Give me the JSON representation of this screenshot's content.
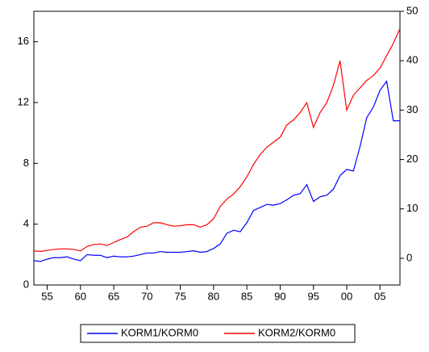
{
  "chart_data": {
    "type": "line",
    "x": [
      1953,
      1954,
      1955,
      1956,
      1957,
      1958,
      1959,
      1960,
      1961,
      1962,
      1963,
      1964,
      1965,
      1966,
      1967,
      1968,
      1969,
      1970,
      1971,
      1972,
      1973,
      1974,
      1975,
      1976,
      1977,
      1978,
      1979,
      1980,
      1981,
      1982,
      1983,
      1984,
      1985,
      1986,
      1987,
      1988,
      1989,
      1990,
      1991,
      1992,
      1993,
      1994,
      1995,
      1996,
      1997,
      1998,
      1999,
      2000,
      2001,
      2002,
      2003,
      2004,
      2005,
      2006,
      2007,
      2008
    ],
    "xlim": [
      1953,
      2008
    ],
    "xticks": [
      {
        "value": 1955,
        "label": "55"
      },
      {
        "value": 1960,
        "label": "60"
      },
      {
        "value": 1965,
        "label": "65"
      },
      {
        "value": 1970,
        "label": "70"
      },
      {
        "value": 1975,
        "label": "75"
      },
      {
        "value": 1980,
        "label": "80"
      },
      {
        "value": 1985,
        "label": "85"
      },
      {
        "value": 1990,
        "label": "90"
      },
      {
        "value": 1995,
        "label": "95"
      },
      {
        "value": 2000,
        "label": "00"
      },
      {
        "value": 2005,
        "label": "05"
      }
    ],
    "ylim": [
      0,
      18
    ],
    "yticks": [
      0,
      4,
      8,
      12,
      16
    ],
    "y2lim": [
      -5.4,
      50
    ],
    "y2ticks": [
      0,
      10,
      20,
      30,
      40,
      50
    ],
    "series": [
      {
        "name": "KORM1/KORM0",
        "color": "#0000ff",
        "values": [
          1.6,
          1.55,
          1.7,
          1.8,
          1.8,
          1.85,
          1.7,
          1.6,
          2.0,
          1.95,
          1.95,
          1.8,
          1.9,
          1.85,
          1.85,
          1.9,
          2.0,
          2.1,
          2.1,
          2.2,
          2.15,
          2.15,
          2.15,
          2.2,
          2.25,
          2.15,
          2.2,
          2.4,
          2.7,
          3.4,
          3.6,
          3.5,
          4.1,
          4.9,
          5.1,
          5.3,
          5.25,
          5.35,
          5.6,
          5.9,
          6.0,
          6.6,
          5.5,
          5.8,
          5.9,
          6.3,
          7.2,
          7.6,
          7.5,
          9.1,
          11.0,
          11.7,
          12.8,
          13.4,
          10.8,
          10.8
        ]
      },
      {
        "name": "KORM2/KORM0",
        "color": "#ff0000",
        "axis": "y2",
        "values": [
          1.5,
          1.4,
          1.6,
          1.8,
          1.9,
          1.9,
          1.8,
          1.5,
          2.4,
          2.8,
          2.9,
          2.6,
          3.2,
          3.8,
          4.3,
          5.4,
          6.3,
          6.5,
          7.2,
          7.2,
          6.8,
          6.5,
          6.6,
          6.8,
          6.8,
          6.3,
          6.8,
          8.0,
          10.5,
          12,
          13,
          14.5,
          16.5,
          19,
          21,
          22.5,
          23.5,
          24.5,
          27,
          28,
          29.5,
          31.5,
          26.5,
          29.5,
          31.5,
          35,
          40,
          30,
          33,
          34.5,
          36,
          37,
          38.5,
          41,
          43.5,
          46.5
        ]
      }
    ]
  }
}
